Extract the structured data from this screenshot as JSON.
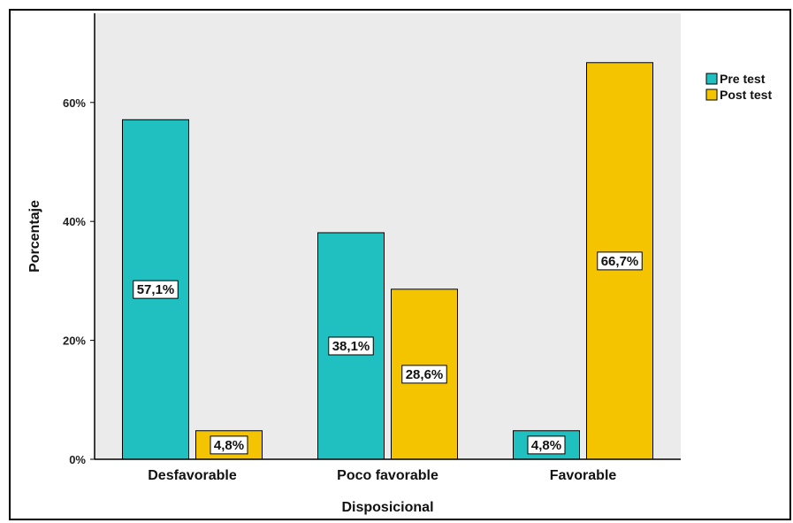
{
  "chart_data": {
    "type": "bar",
    "categories": [
      "Desfavorable",
      "Poco favorable",
      "Favorable"
    ],
    "series": [
      {
        "name": "Pre test",
        "values": [
          57.1,
          38.1,
          4.8
        ],
        "labels": [
          "57,1%",
          "38,1%",
          "4,8%"
        ],
        "color": "#20c0c0"
      },
      {
        "name": "Post test",
        "values": [
          4.8,
          28.6,
          66.7
        ],
        "labels": [
          "4,8%",
          "28,6%",
          "66,7%"
        ],
        "color": "#f5c400"
      }
    ],
    "yticks": [
      0,
      20,
      40,
      60
    ],
    "ytick_labels": [
      "0%",
      "20%",
      "40%",
      "60%"
    ],
    "xlabel": "Disposicional",
    "ylabel": "Porcentaje",
    "ylim": [
      0,
      75
    ],
    "legend_position": "top-right",
    "plot_background": "#ebebeb",
    "grid": false
  }
}
